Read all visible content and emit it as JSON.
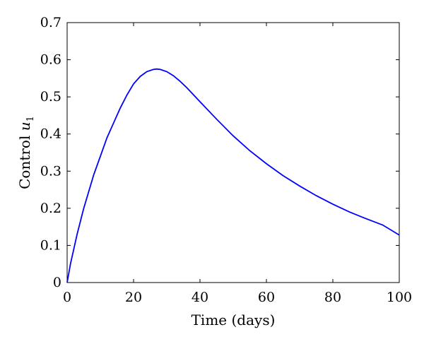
{
  "chart_data": {
    "type": "line",
    "xlabel": "Time (days)",
    "ylabel_text": "Control ",
    "ylabel_var": "u",
    "ylabel_sub": "1",
    "xlim": [
      0,
      100
    ],
    "ylim": [
      0,
      0.7
    ],
    "xticks": [
      "0",
      "20",
      "40",
      "60",
      "80",
      "100"
    ],
    "yticks": [
      "0",
      "0.1",
      "0.2",
      "0.3",
      "0.4",
      "0.5",
      "0.6",
      "0.7"
    ],
    "grid": false,
    "line_color": "#0000ff",
    "series": [
      {
        "x": [
          0,
          1,
          2,
          3,
          4,
          5,
          6,
          8,
          10,
          12,
          14,
          16,
          18,
          20,
          22,
          24,
          26,
          27,
          28,
          30,
          32,
          34,
          36,
          38,
          40,
          45,
          50,
          55,
          60,
          65,
          70,
          75,
          80,
          85,
          90,
          95,
          100
        ],
        "y": [
          0,
          0.05,
          0.09,
          0.13,
          0.165,
          0.2,
          0.23,
          0.29,
          0.34,
          0.39,
          0.43,
          0.47,
          0.505,
          0.535,
          0.555,
          0.568,
          0.574,
          0.575,
          0.574,
          0.568,
          0.557,
          0.542,
          0.525,
          0.506,
          0.487,
          0.44,
          0.395,
          0.355,
          0.32,
          0.288,
          0.26,
          0.234,
          0.211,
          0.19,
          0.172,
          0.155,
          0.128
        ]
      }
    ]
  }
}
